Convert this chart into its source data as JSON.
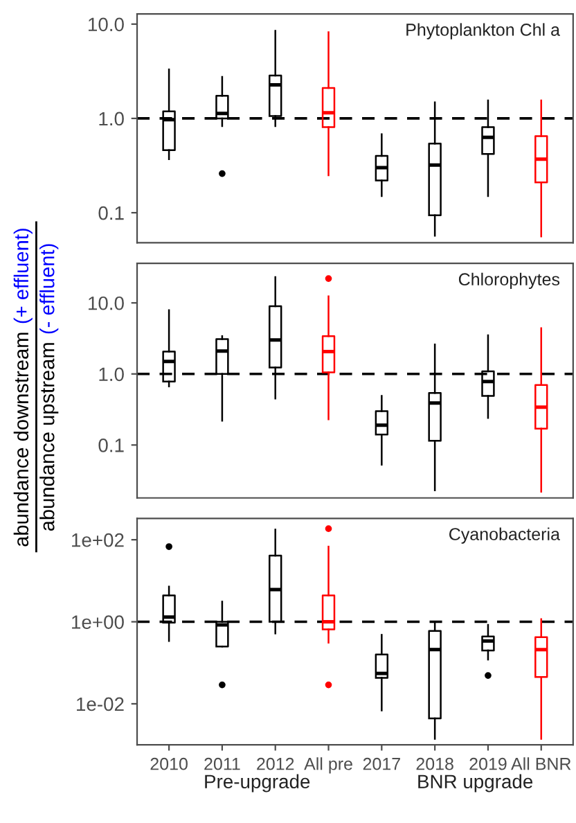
{
  "chart_data": [
    {
      "type": "box",
      "title": "Phytoplankton Chl a",
      "categories": [
        null,
        null,
        null,
        null,
        null,
        null,
        null,
        null
      ],
      "colors": [
        "#000000",
        "#000000",
        "#000000",
        "#ff0000",
        "#000000",
        "#000000",
        "#000000",
        "#ff0000"
      ],
      "boxes": [
        {
          "low": 0.37,
          "q1": 0.46,
          "median": 0.97,
          "q3": 1.19,
          "high": 3.3
        },
        {
          "low": 0.83,
          "q1": 1.0,
          "median": 1.13,
          "q3": 1.74,
          "high": 2.76,
          "outliers": [
            0.26
          ]
        },
        {
          "low": 0.83,
          "q1": 1.06,
          "median": 2.27,
          "q3": 2.85,
          "high": 8.5
        },
        {
          "low": 0.25,
          "q1": 0.81,
          "median": 1.15,
          "q3": 2.1,
          "high": 8.2
        },
        {
          "low": 0.15,
          "q1": 0.22,
          "median": 0.3,
          "q3": 0.4,
          "high": 0.68
        },
        {
          "low": 0.057,
          "q1": 0.094,
          "median": 0.32,
          "q3": 0.54,
          "high": 1.48
        },
        {
          "low": 0.15,
          "q1": 0.42,
          "median": 0.63,
          "q3": 0.81,
          "high": 1.55
        },
        {
          "low": 0.056,
          "q1": 0.21,
          "median": 0.37,
          "q3": 0.65,
          "high": 1.55
        }
      ],
      "log": "y",
      "ylim": [
        0.048,
        12.8
      ],
      "yticks": [
        {
          "value": 0.1,
          "label": "0.1"
        },
        {
          "value": 1,
          "label": "1.0"
        },
        {
          "value": 10,
          "label": "10.0"
        }
      ],
      "ref_lines": [
        {
          "axis": "y",
          "value": 1,
          "label": null,
          "line_style": "dashed",
          "color": "#000000"
        }
      ],
      "tick_labels": "y",
      "grid": false,
      "legend": false
    },
    {
      "type": "box",
      "title": "Chlorophytes",
      "categories": [
        null,
        null,
        null,
        null,
        null,
        null,
        null,
        null
      ],
      "ylabel": "abundance downstream (+ effluent)\nabundance upstream (- effluent)",
      "colors": [
        "#000000",
        "#000000",
        "#000000",
        "#ff0000",
        "#000000",
        "#000000",
        "#000000",
        "#ff0000"
      ],
      "boxes": [
        {
          "low": 0.67,
          "q1": 0.78,
          "median": 1.5,
          "q3": 2.06,
          "high": 7.9
        },
        {
          "low": 0.22,
          "q1": 1.0,
          "median": 2.1,
          "q3": 3.1,
          "high": 3.4
        },
        {
          "low": 0.45,
          "q1": 1.23,
          "median": 3.0,
          "q3": 9.0,
          "high": 23
        },
        {
          "low": 0.23,
          "q1": 1.05,
          "median": 2.06,
          "q3": 3.4,
          "high": 12.4,
          "outliers": [
            22
          ]
        },
        {
          "low": 0.053,
          "q1": 0.14,
          "median": 0.19,
          "q3": 0.3,
          "high": 0.49
        },
        {
          "low": 0.023,
          "q1": 0.115,
          "median": 0.39,
          "q3": 0.54,
          "high": 2.6
        },
        {
          "low": 0.24,
          "q1": 0.49,
          "median": 0.78,
          "q3": 1.09,
          "high": 3.5
        },
        {
          "low": 0.022,
          "q1": 0.17,
          "median": 0.34,
          "q3": 0.7,
          "high": 4.4
        }
      ],
      "log": "y",
      "ylim": [
        0.018,
        36
      ],
      "yticks": [
        {
          "value": 0.1,
          "label": "0.1"
        },
        {
          "value": 1,
          "label": "1.0"
        },
        {
          "value": 10,
          "label": "10.0"
        }
      ],
      "ref_lines": [
        {
          "axis": "y",
          "value": 1,
          "label": null,
          "line_style": "dashed",
          "color": "#000000"
        }
      ],
      "tick_labels": "y",
      "grid": false,
      "legend": false
    },
    {
      "type": "box",
      "title": "Cyanobacteria",
      "categories": [
        "2010",
        "2011",
        "2012",
        "All pre",
        "2017",
        "2018",
        "2019",
        "All BNR"
      ],
      "colors": [
        "#000000",
        "#000000",
        "#000000",
        "#ff0000",
        "#000000",
        "#000000",
        "#000000",
        "#ff0000"
      ],
      "boxes": [
        {
          "low": 0.34,
          "q1": 0.95,
          "median": 1.3,
          "q3": 4.4,
          "high": 7.2,
          "outliers": [
            68
          ]
        },
        {
          "low": 0.25,
          "q1": 0.25,
          "median": 0.84,
          "q3": 1.0,
          "high": 3.1,
          "outliers": [
            0.029
          ]
        },
        {
          "low": 0.52,
          "q1": 1.0,
          "median": 6.1,
          "q3": 41,
          "high": 177
        },
        {
          "low": 0.31,
          "q1": 0.65,
          "median": 1.0,
          "q3": 4.4,
          "high": 68,
          "outliers": [
            186,
            0.029
          ]
        },
        {
          "low": 0.0069,
          "q1": 0.043,
          "median": 0.055,
          "q3": 0.16,
          "high": 0.48
        },
        {
          "low": 0.0014,
          "q1": 0.0044,
          "median": 0.21,
          "q3": 0.6,
          "high": 1.0
        },
        {
          "low": 0.12,
          "q1": 0.2,
          "median": 0.34,
          "q3": 0.44,
          "high": 0.84,
          "outliers": [
            0.049
          ]
        },
        {
          "low": 0.0014,
          "q1": 0.045,
          "median": 0.21,
          "q3": 0.42,
          "high": 1.16
        }
      ],
      "log": "y",
      "ylim": [
        0.001,
        330
      ],
      "yticks": [
        {
          "value": 0.01,
          "label": "1e-02"
        },
        {
          "value": 1,
          "label": "1e+00"
        },
        {
          "value": 100,
          "label": "1e+02"
        }
      ],
      "ref_lines": [
        {
          "axis": "y",
          "value": 1,
          "label": null,
          "line_style": "dashed",
          "color": "#000000"
        }
      ],
      "annotations": [
        "Pre-upgrade",
        "BNR upgrade"
      ],
      "grid": false,
      "legend": false
    }
  ]
}
